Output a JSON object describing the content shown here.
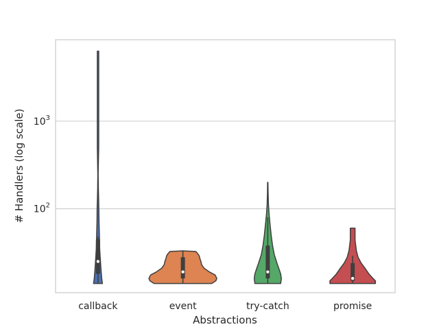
{
  "chart_data": {
    "type": "violin",
    "title": "",
    "xlabel": "Abstractions",
    "ylabel": "# Handlers (log scale)",
    "yscale": "log",
    "ylim": [
      11,
      8500
    ],
    "yticks": [
      {
        "value": 100,
        "base": "10",
        "exp": "2"
      },
      {
        "value": 1000,
        "base": "10",
        "exp": "3"
      }
    ],
    "grid": "horizontal",
    "categories": [
      "callback",
      "event",
      "try-catch",
      "promise"
    ],
    "series": [
      {
        "category": "callback",
        "color": "#4c72b0",
        "min": 14,
        "max": 6300,
        "q1": 18,
        "median": 25,
        "q3": 45,
        "whisker_low": 14,
        "whisker_high": 48,
        "profile": [
          [
            14,
            0.13
          ],
          [
            16,
            0.11
          ],
          [
            20,
            0.09
          ],
          [
            26,
            0.07
          ],
          [
            35,
            0.05
          ],
          [
            50,
            0.04
          ],
          [
            70,
            0.03
          ],
          [
            100,
            0.025
          ],
          [
            130,
            0.018
          ],
          [
            170,
            0.01
          ],
          [
            250,
            0.005
          ],
          [
            500,
            0.02
          ],
          [
            6300,
            0.02
          ]
        ]
      },
      {
        "category": "event",
        "color": "#dd8452",
        "min": 14,
        "max": 33,
        "q1": 16,
        "median": 19,
        "q3": 28,
        "whisker_low": 14,
        "whisker_high": 33,
        "profile": [
          [
            14,
            0.85
          ],
          [
            15,
            0.97
          ],
          [
            16,
            1.0
          ],
          [
            17.5,
            0.95
          ],
          [
            19,
            0.78
          ],
          [
            21,
            0.62
          ],
          [
            23,
            0.55
          ],
          [
            25,
            0.53
          ],
          [
            27,
            0.5
          ],
          [
            29,
            0.48
          ],
          [
            31,
            0.43
          ],
          [
            32.5,
            0.38
          ],
          [
            33,
            0.0
          ]
        ]
      },
      {
        "category": "try-catch",
        "color": "#55a868",
        "min": 14,
        "max": 200,
        "q1": 16,
        "median": 19,
        "q3": 38,
        "whisker_low": 14,
        "whisker_high": 80,
        "profile": [
          [
            14,
            0.38
          ],
          [
            16,
            0.4
          ],
          [
            18,
            0.38
          ],
          [
            20,
            0.34
          ],
          [
            24,
            0.27
          ],
          [
            30,
            0.19
          ],
          [
            38,
            0.14
          ],
          [
            50,
            0.1
          ],
          [
            65,
            0.07
          ],
          [
            85,
            0.04
          ],
          [
            110,
            0.02
          ],
          [
            150,
            0.01
          ],
          [
            200,
            0.005
          ]
        ]
      },
      {
        "category": "promise",
        "color": "#c44e52",
        "min": 14,
        "max": 60,
        "q1": 15,
        "median": 16,
        "q3": 24,
        "whisker_low": 14,
        "whisker_high": 29,
        "profile": [
          [
            14,
            0.67
          ],
          [
            15,
            0.67
          ],
          [
            16,
            0.6
          ],
          [
            18,
            0.48
          ],
          [
            21,
            0.36
          ],
          [
            24,
            0.25
          ],
          [
            28,
            0.16
          ],
          [
            33,
            0.11
          ],
          [
            38,
            0.09
          ],
          [
            44,
            0.07
          ],
          [
            50,
            0.07
          ],
          [
            56,
            0.07
          ],
          [
            60,
            0.07
          ]
        ]
      }
    ]
  }
}
